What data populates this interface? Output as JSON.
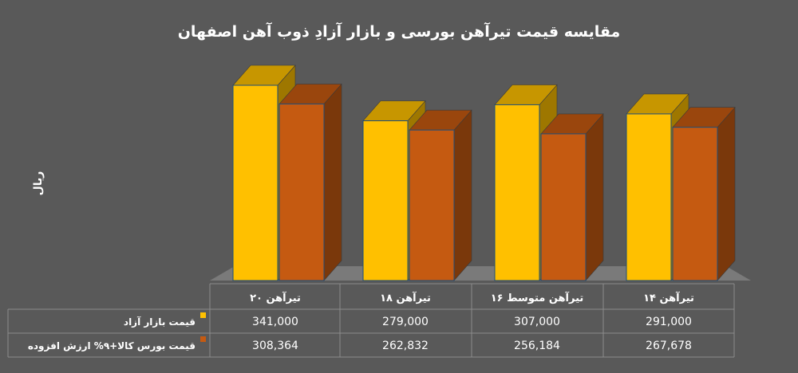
{
  "chart_data": {
    "type": "bar",
    "title": "مقایسه قیمت تیرآهن بورسی و بازار آزادِ ذوب آهن اصفهان",
    "ylabel": "ریال",
    "xlabel": "",
    "categories": [
      "تیرآهن ۱۴",
      "تیرآهن متوسط ۱۶",
      "تیرآهن ۱۸",
      "تیرآهن ۲۰"
    ],
    "series": [
      {
        "name": "قیمت بازار آزاد",
        "values": [
          291000,
          307000,
          279000,
          341000
        ],
        "labels": [
          "291,000",
          "307,000",
          "279,000",
          "341,000"
        ],
        "color": "#FFC000"
      },
      {
        "name": "قیمت بورس کالا+۹% ارزش افزوده",
        "values": [
          267678,
          256184,
          262832,
          308364
        ],
        "labels": [
          "267,678",
          "256,184",
          "262,832",
          "308,364"
        ],
        "color": "#C55A11"
      }
    ],
    "ylim": [
      0,
      341000
    ],
    "grid": false,
    "legend": "data-table",
    "direction": "rtl"
  }
}
